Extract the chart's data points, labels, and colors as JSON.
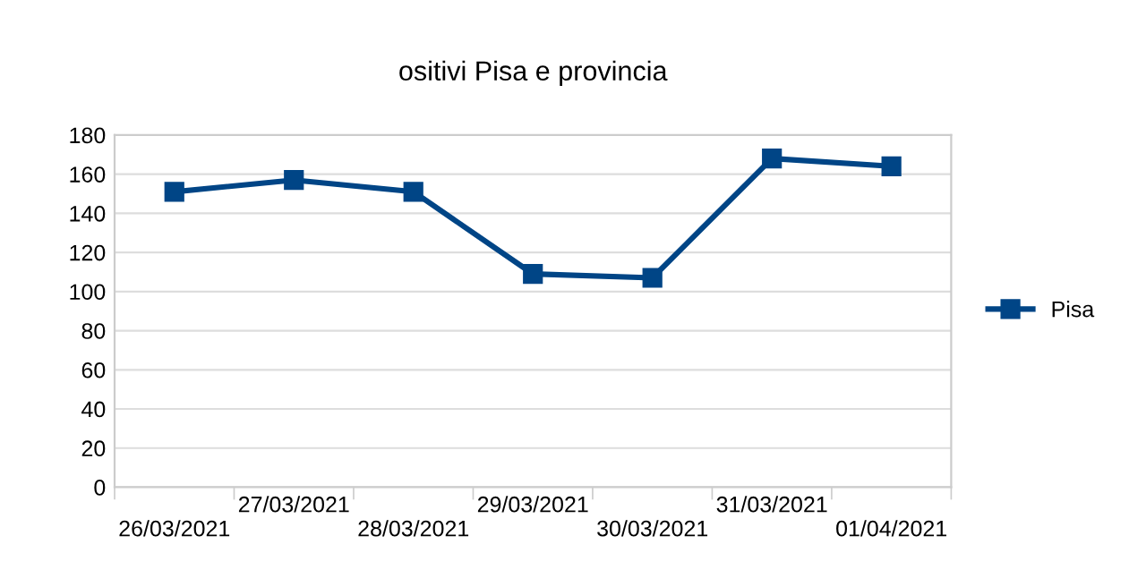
{
  "chart_data": {
    "type": "line",
    "title": "ositivi Pisa e provincia",
    "categories": [
      "26/03/2021",
      "27/03/2021",
      "28/03/2021",
      "29/03/2021",
      "30/03/2021",
      "31/03/2021",
      "01/04/2021"
    ],
    "series": [
      {
        "name": "Pisa",
        "color": "#004586",
        "values": [
          151,
          157,
          151,
          109,
          107,
          168,
          164
        ]
      }
    ],
    "ylim": [
      0,
      180
    ],
    "yticks": [
      0,
      20,
      40,
      60,
      80,
      100,
      120,
      140,
      160,
      180
    ],
    "grid": "y",
    "legend": "right",
    "marker": "square",
    "line_style": "solid"
  }
}
